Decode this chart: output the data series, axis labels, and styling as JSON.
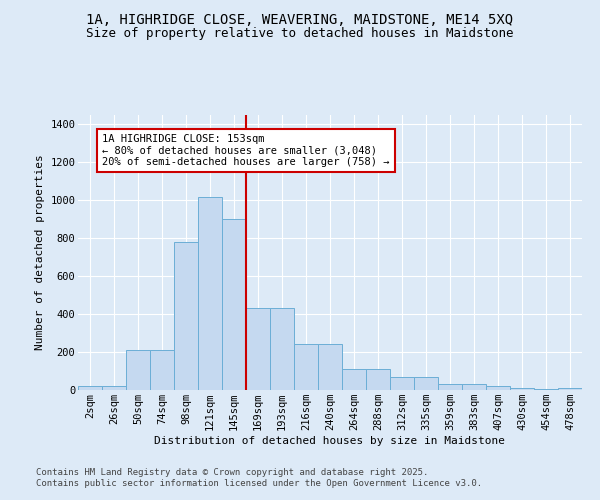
{
  "title_line1": "1A, HIGHRIDGE CLOSE, WEAVERING, MAIDSTONE, ME14 5XQ",
  "title_line2": "Size of property relative to detached houses in Maidstone",
  "xlabel": "Distribution of detached houses by size in Maidstone",
  "ylabel": "Number of detached properties",
  "categories": [
    "2sqm",
    "26sqm",
    "50sqm",
    "74sqm",
    "98sqm",
    "121sqm",
    "145sqm",
    "169sqm",
    "193sqm",
    "216sqm",
    "240sqm",
    "264sqm",
    "288sqm",
    "312sqm",
    "335sqm",
    "359sqm",
    "383sqm",
    "407sqm",
    "430sqm",
    "454sqm",
    "478sqm"
  ],
  "values": [
    20,
    20,
    210,
    210,
    780,
    1020,
    900,
    430,
    430,
    240,
    240,
    110,
    110,
    70,
    70,
    30,
    30,
    20,
    10,
    5,
    10
  ],
  "bar_color": "#c5d9f0",
  "bar_edge_color": "#6baed6",
  "vline_x_index": 6.5,
  "vline_color": "#cc0000",
  "annotation_text_line1": "1A HIGHRIDGE CLOSE: 153sqm",
  "annotation_text_line2": "← 80% of detached houses are smaller (3,048)",
  "annotation_text_line3": "20% of semi-detached houses are larger (758) →",
  "annotation_box_facecolor": "#ffffff",
  "annotation_box_edgecolor": "#cc0000",
  "background_color": "#ddeaf7",
  "grid_color": "#ffffff",
  "ylim": [
    0,
    1450
  ],
  "yticks": [
    0,
    200,
    400,
    600,
    800,
    1000,
    1200,
    1400
  ],
  "footer_line1": "Contains HM Land Registry data © Crown copyright and database right 2025.",
  "footer_line2": "Contains public sector information licensed under the Open Government Licence v3.0.",
  "title_fontsize": 10,
  "subtitle_fontsize": 9,
  "axis_label_fontsize": 8,
  "tick_fontsize": 7.5,
  "annotation_fontsize": 7.5,
  "footer_fontsize": 6.5
}
